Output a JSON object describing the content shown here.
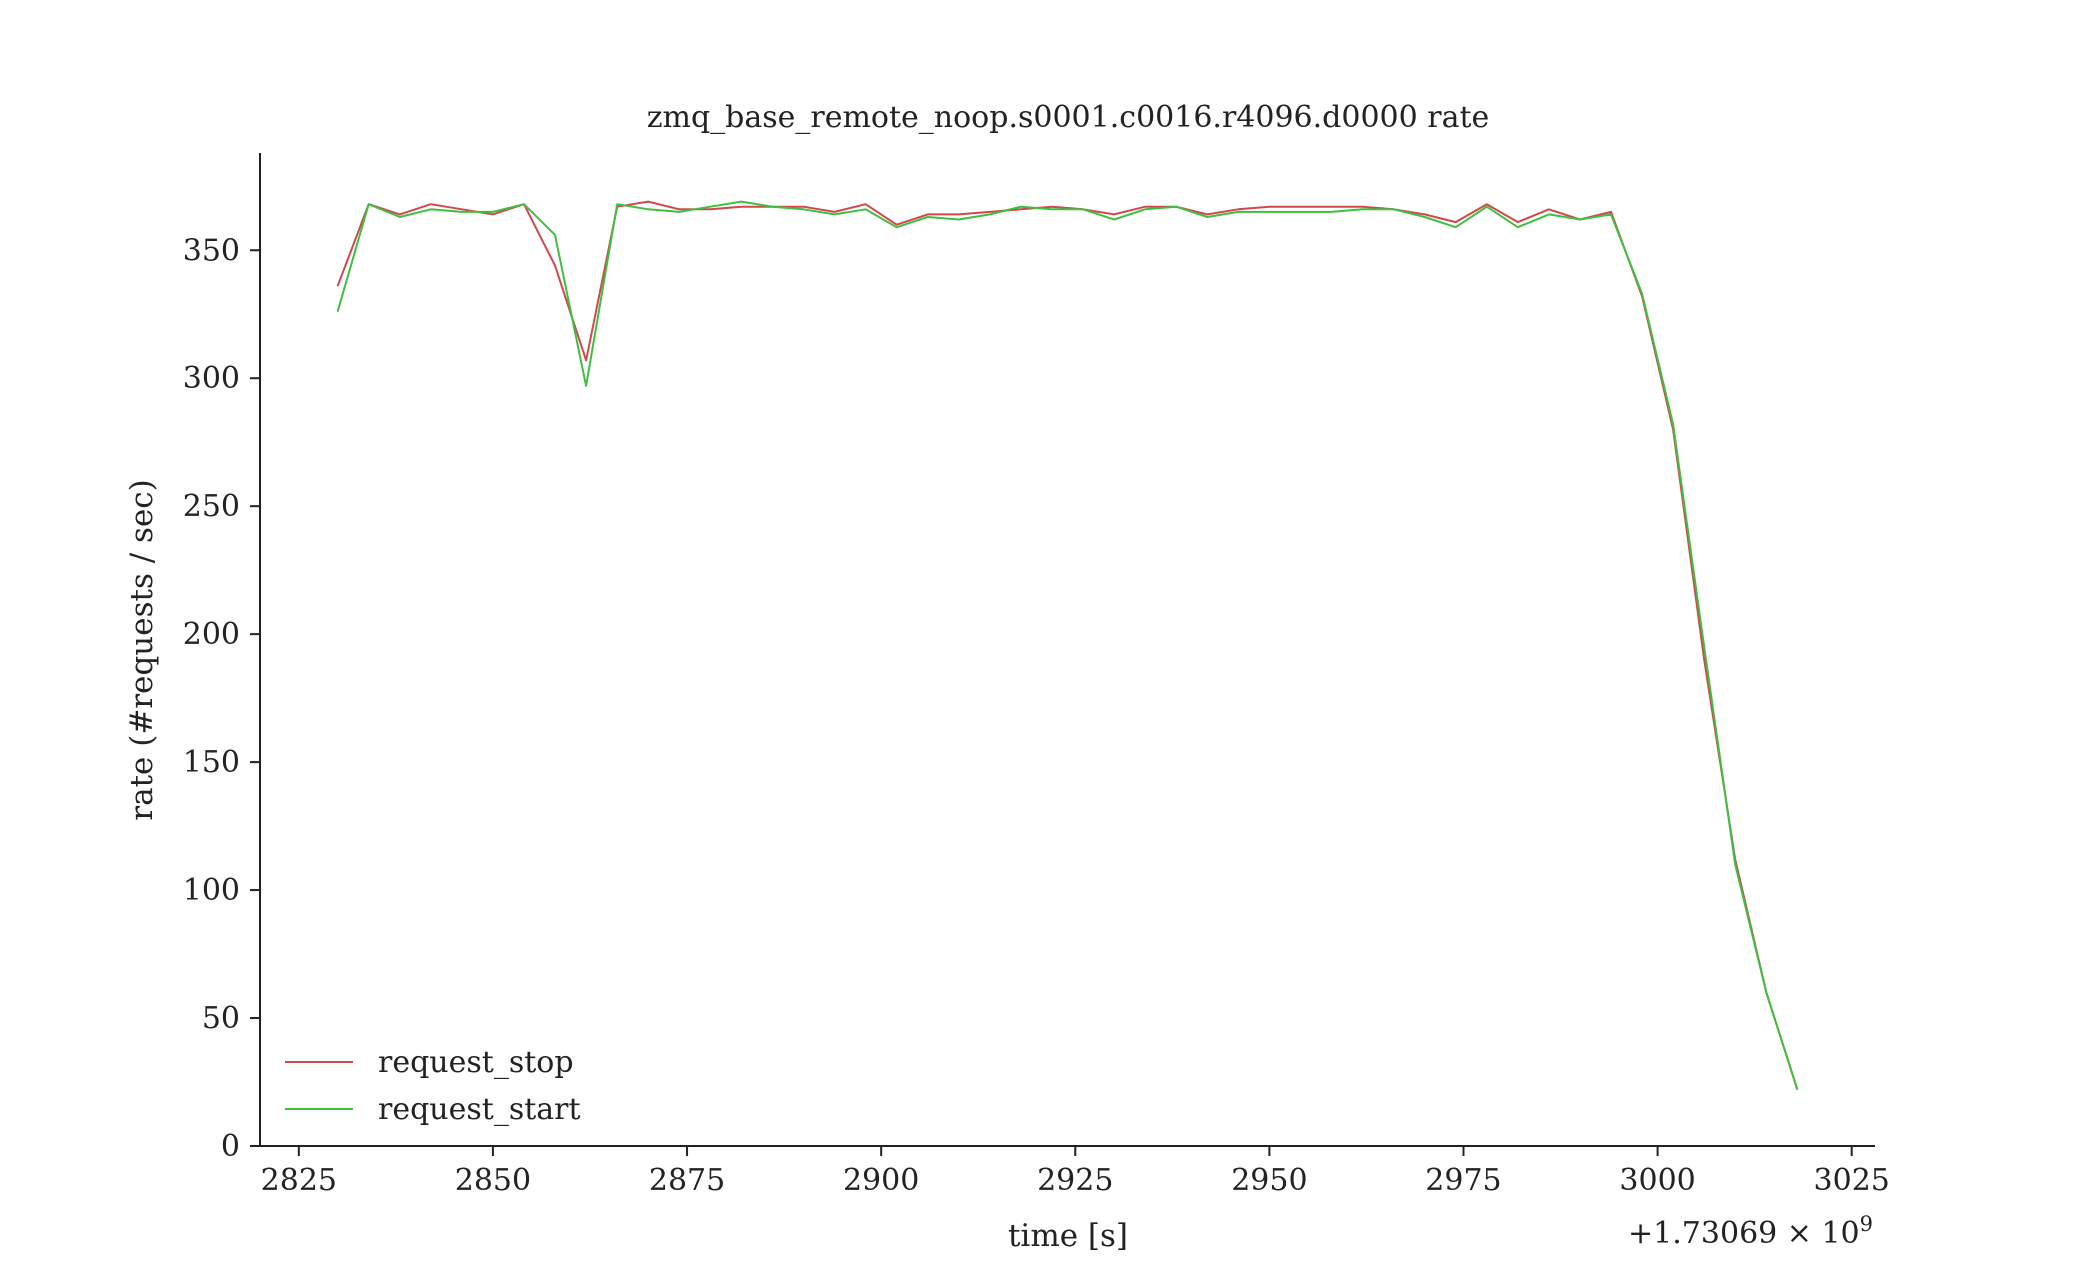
{
  "chart_data": {
    "type": "line",
    "title": "zmq_base_remote_noop.s0001.c0016.r4096.d0000 rate",
    "xlabel": "time [s]",
    "ylabel": "rate (#requests / sec)",
    "x_offset_label": "+1.73069 × 10",
    "x_offset_exponent": "9",
    "xlim": [
      2820,
      3028
    ],
    "ylim": [
      0,
      388
    ],
    "xticks": [
      2825,
      2850,
      2875,
      2900,
      2925,
      2950,
      2975,
      3000,
      3025
    ],
    "yticks": [
      0,
      50,
      100,
      150,
      200,
      250,
      300,
      350
    ],
    "grid": false,
    "legend_position": "lower-left",
    "x": [
      2830,
      2834,
      2838,
      2842,
      2846,
      2850,
      2854,
      2858,
      2862,
      2866,
      2870,
      2874,
      2878,
      2882,
      2886,
      2890,
      2894,
      2898,
      2902,
      2906,
      2910,
      2914,
      2918,
      2922,
      2926,
      2930,
      2934,
      2938,
      2942,
      2946,
      2950,
      2954,
      2958,
      2962,
      2966,
      2970,
      2974,
      2978,
      2982,
      2986,
      2990,
      2994,
      2998,
      3002,
      3006,
      3010,
      3014,
      3018
    ],
    "series": [
      {
        "name": "request_stop",
        "color": "#d0484e",
        "values": [
          336,
          368,
          364,
          368,
          366,
          364,
          368,
          344,
          307,
          367,
          369,
          366,
          366,
          367,
          367,
          367,
          365,
          368,
          360,
          364,
          364,
          365,
          366,
          367,
          366,
          364,
          367,
          367,
          364,
          366,
          367,
          367,
          367,
          367,
          366,
          364,
          361,
          368,
          361,
          366,
          362,
          365,
          332,
          280,
          190,
          112,
          60,
          22
        ]
      },
      {
        "name": "request_start",
        "color": "#3fbf3f",
        "values": [
          326,
          368,
          363,
          366,
          365,
          365,
          368,
          356,
          297,
          368,
          366,
          365,
          367,
          369,
          367,
          366,
          364,
          366,
          359,
          363,
          362,
          364,
          367,
          366,
          366,
          362,
          366,
          367,
          363,
          365,
          365,
          365,
          365,
          366,
          366,
          363,
          359,
          367,
          359,
          364,
          362,
          364,
          333,
          282,
          195,
          110,
          60,
          22
        ]
      }
    ]
  }
}
